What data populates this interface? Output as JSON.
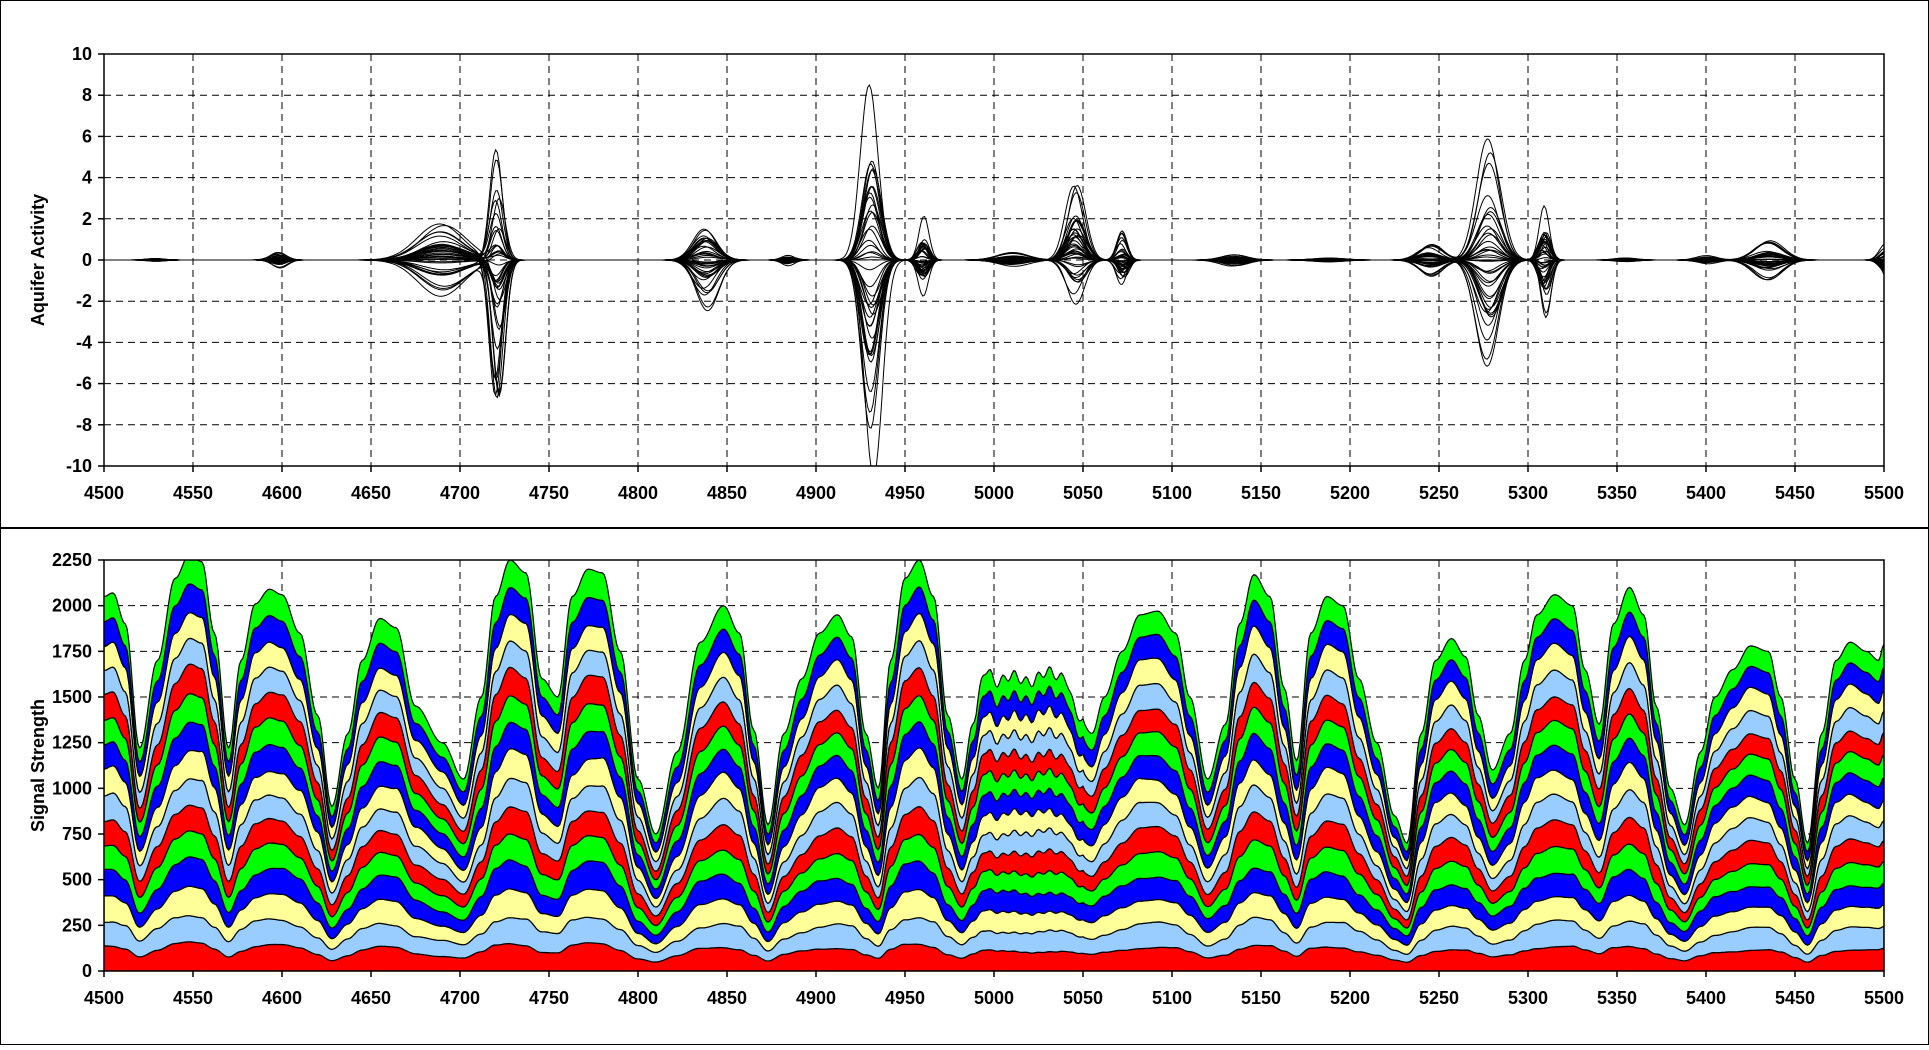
{
  "chart_data": [
    {
      "type": "line",
      "ylabel": "Aquifer Activity",
      "xlabel": "",
      "xlim": [
        4500,
        5500
      ],
      "ylim": [
        -10,
        10
      ],
      "x_ticks": [
        4500,
        4550,
        4600,
        4650,
        4700,
        4750,
        4800,
        4850,
        4900,
        4950,
        5000,
        5050,
        5100,
        5150,
        5200,
        5250,
        5300,
        5350,
        5400,
        5450,
        5500
      ],
      "y_ticks": [
        -10,
        -8,
        -6,
        -4,
        -2,
        0,
        2,
        4,
        6,
        8,
        10
      ],
      "grid": "dashed",
      "legend": "none",
      "series_color": "#000000",
      "series_count": 40,
      "components": [
        {
          "center": 4530,
          "width": 7,
          "amplitude": 0.08
        },
        {
          "center": 4598,
          "width": 6,
          "amplitude": 0.4
        },
        {
          "center": 4690,
          "width": 18,
          "amplitude": 1.8
        },
        {
          "center": 4721,
          "width": 5,
          "amplitude": 7.2
        },
        {
          "center": 4838,
          "width": 9,
          "amplitude": 2.5
        },
        {
          "center": 4885,
          "width": 5,
          "amplitude": 0.3
        },
        {
          "center": 4931,
          "width": 7,
          "amplitude": 11.0
        },
        {
          "center": 4960,
          "width": 4,
          "amplitude": 2.2
        },
        {
          "center": 5010,
          "width": 12,
          "amplitude": 0.4
        },
        {
          "center": 5046,
          "width": 7,
          "amplitude": 4.6
        },
        {
          "center": 5072,
          "width": 4,
          "amplitude": 1.5
        },
        {
          "center": 5135,
          "width": 10,
          "amplitude": 0.3
        },
        {
          "center": 5188,
          "width": 12,
          "amplitude": 0.1
        },
        {
          "center": 5245,
          "width": 9,
          "amplitude": 0.8
        },
        {
          "center": 5278,
          "width": 9,
          "amplitude": 6.0
        },
        {
          "center": 5309,
          "width": 4,
          "amplitude": 3.2
        },
        {
          "center": 5355,
          "width": 8,
          "amplitude": 0.1
        },
        {
          "center": 5400,
          "width": 8,
          "amplitude": 0.25
        },
        {
          "center": 5435,
          "width": 11,
          "amplitude": 1.1
        },
        {
          "center": 5502,
          "width": 5,
          "amplitude": 1.3
        }
      ]
    },
    {
      "type": "area",
      "stacked": true,
      "ylabel": "Signal Strength",
      "xlabel": "",
      "xlim": [
        4500,
        5500
      ],
      "ylim": [
        0,
        2250
      ],
      "x_ticks": [
        4500,
        4550,
        4600,
        4650,
        4700,
        4750,
        4800,
        4850,
        4900,
        4950,
        5000,
        5050,
        5100,
        5150,
        5200,
        5250,
        5300,
        5350,
        5400,
        5450,
        5500
      ],
      "y_ticks": [
        0,
        250,
        500,
        750,
        1000,
        1250,
        1500,
        1750,
        2000,
        2250
      ],
      "grid": "dashed",
      "legend": "none",
      "colors": [
        "#ff0000",
        "#99ccff",
        "#ffff99",
        "#0000ff",
        "#00ff00"
      ],
      "layer_count": 15,
      "envelope": {
        "x": [
          4500,
          4505,
          4512,
          4520,
          4530,
          4540,
          4548,
          4555,
          4562,
          4570,
          4577,
          4585,
          4593,
          4600,
          4610,
          4620,
          4628,
          4637,
          4645,
          4655,
          4664,
          4675,
          4690,
          4702,
          4712,
          4720,
          4728,
          4737,
          4746,
          4755,
          4763,
          4772,
          4780,
          4790,
          4800,
          4810,
          4822,
          4835,
          4848,
          4857,
          4865,
          4873,
          4882,
          4892,
          4902,
          4912,
          4920,
          4928,
          4935,
          4942,
          4950,
          4958,
          4966,
          4974,
          4982,
          4988,
          4995,
          5002,
          5010,
          5020,
          5030,
          5040,
          5047,
          5055,
          5062,
          5072,
          5082,
          5092,
          5102,
          5110,
          5120,
          5130,
          5138,
          5146,
          5155,
          5163,
          5170,
          5178,
          5187,
          5196,
          5205,
          5215,
          5225,
          5232,
          5240,
          5248,
          5257,
          5265,
          5272,
          5280,
          5290,
          5298,
          5305,
          5315,
          5325,
          5332,
          5340,
          5348,
          5357,
          5365,
          5372,
          5380,
          5388,
          5397,
          5405,
          5415,
          5425,
          5435,
          5442,
          5450,
          5457,
          5465,
          5473,
          5481,
          5490,
          5497,
          5500
        ],
        "y": [
          2050,
          2070,
          1900,
          1220,
          1700,
          2150,
          2280,
          2240,
          1850,
          1220,
          1700,
          2010,
          2090,
          2060,
          1850,
          1400,
          900,
          1300,
          1700,
          1930,
          1880,
          1450,
          1250,
          1050,
          1500,
          2050,
          2250,
          2180,
          1600,
          1500,
          2050,
          2200,
          2180,
          1750,
          1050,
          750,
          1200,
          1800,
          2000,
          1850,
          1320,
          800,
          1300,
          1600,
          1850,
          1950,
          1830,
          1300,
          1000,
          1700,
          2150,
          2250,
          2050,
          1400,
          1050,
          1350,
          1650,
          1580,
          1620,
          1580,
          1640,
          1600,
          1400,
          1300,
          1500,
          1750,
          1950,
          1970,
          1850,
          1500,
          1050,
          1350,
          1900,
          2170,
          2050,
          1550,
          1150,
          1850,
          2050,
          2000,
          1600,
          1250,
          850,
          700,
          1300,
          1700,
          1820,
          1720,
          1400,
          1100,
          1300,
          1700,
          1950,
          2060,
          2000,
          1650,
          1350,
          1900,
          2100,
          1950,
          1450,
          1000,
          800,
          1200,
          1500,
          1650,
          1780,
          1750,
          1500,
          1050,
          700,
          1300,
          1700,
          1800,
          1750,
          1700,
          1790
        ]
      }
    }
  ]
}
